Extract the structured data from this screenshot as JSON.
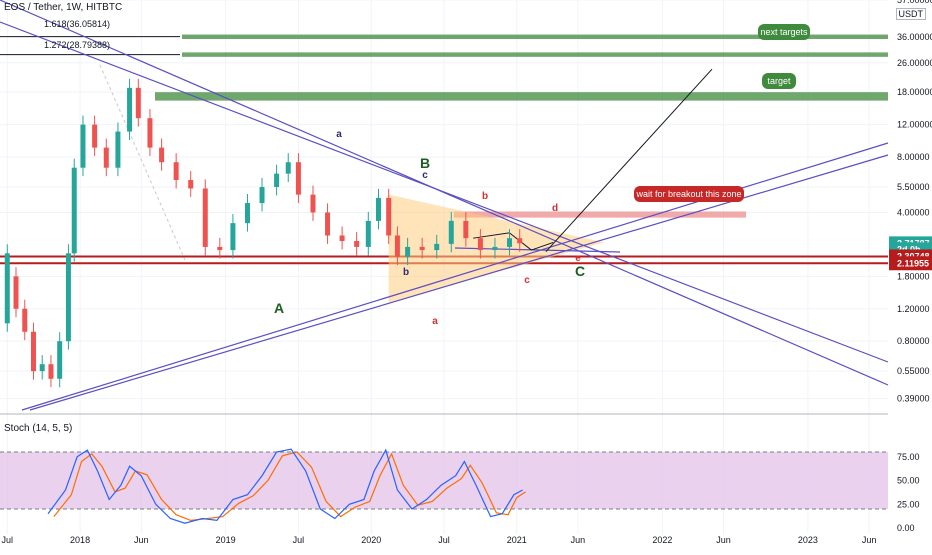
{
  "symbol_title": "EOS / Tether, 1W, HITBTC",
  "currency_label": "USDT",
  "fib_levels": [
    {
      "label": "1.618(36.05814)",
      "price": 36.05814
    },
    {
      "label": "1.272(28.79388)",
      "price": 28.79388
    }
  ],
  "price_axis": {
    "ticks": [
      {
        "label": "57.00000",
        "value": 57
      },
      {
        "label": "36.00000",
        "value": 36
      },
      {
        "label": "26.00000",
        "value": 26
      },
      {
        "label": "18.00000",
        "value": 18
      },
      {
        "label": "12.00000",
        "value": 12
      },
      {
        "label": "8.00000",
        "value": 8
      },
      {
        "label": "5.50000",
        "value": 5.5
      },
      {
        "label": "4.00000",
        "value": 4
      },
      {
        "label": "1.80000",
        "value": 1.8
      },
      {
        "label": "1.20000",
        "value": 1.2
      },
      {
        "label": "0.80000",
        "value": 0.8
      },
      {
        "label": "0.55000",
        "value": 0.55
      },
      {
        "label": "0.39000",
        "value": 0.39
      }
    ],
    "badges": [
      {
        "label": "2.71787",
        "value": 2.71787,
        "color": "#26a69a"
      },
      {
        "label": "2d 0h",
        "value": 2.52,
        "color": "#26a69a"
      },
      {
        "label": "2.30748",
        "value": 2.30748,
        "color": "#b71c1c"
      },
      {
        "label": "2.11955",
        "value": 2.11955,
        "color": "#b71c1c"
      }
    ]
  },
  "time_axis": [
    {
      "label": "Jul",
      "t": 2017.5
    },
    {
      "label": "2018",
      "t": 2018.0
    },
    {
      "label": "Jun",
      "t": 2018.42
    },
    {
      "label": "2019",
      "t": 2019.0
    },
    {
      "label": "Jul",
      "t": 2019.5
    },
    {
      "label": "2020",
      "t": 2020.0
    },
    {
      "label": "Jul",
      "t": 2020.5
    },
    {
      "label": "2021",
      "t": 2021.0
    },
    {
      "label": "Jun",
      "t": 2021.42
    },
    {
      "label": "2022",
      "t": 2022.0
    },
    {
      "label": "Jun",
      "t": 2022.42
    },
    {
      "label": "2023",
      "t": 2023.0
    },
    {
      "label": "Jun",
      "t": 2023.42
    }
  ],
  "stoch_panel": {
    "title": "Stoch (14, 5, 5)",
    "ticks": [
      {
        "label": "75.00",
        "value": 75
      },
      {
        "label": "50.00",
        "value": 50
      },
      {
        "label": "25.00",
        "value": 25
      },
      {
        "label": "0.00",
        "value": 0
      }
    ]
  },
  "annotations": {
    "wave_A": "A",
    "wave_B": "B",
    "wave_C": "C",
    "sub_a": "a",
    "sub_b": "b",
    "sub_c": "c",
    "red_a": "a",
    "red_b": "b",
    "red_c": "c",
    "red_d": "d",
    "red_e": "e"
  },
  "callouts": {
    "next_targets": "next targets",
    "target": "target",
    "breakout": "wait for breakout this zone"
  },
  "colors": {
    "bull": "#26a69a",
    "bear": "#ef5350",
    "trendline": "#5b4fc4",
    "target_zone": "#3f8a3c",
    "level_red": "#b71c1c",
    "stoch_k": "#2962ff",
    "stoch_d": "#ff6d00",
    "stoch_band": "#e1bee7"
  },
  "chart_data": {
    "type": "candlestick",
    "series": [
      {
        "name": "EOS / Tether, 1W, HITBTC",
        "values": [
          [
            2017.5,
            1.0,
            2.4
          ],
          [
            2017.56,
            1.8,
            1.2
          ],
          [
            2017.62,
            1.2,
            0.9
          ],
          [
            2017.68,
            0.9,
            0.55
          ],
          [
            2017.74,
            0.55,
            0.6
          ],
          [
            2017.8,
            0.6,
            0.5
          ],
          [
            2017.86,
            0.5,
            0.8
          ],
          [
            2017.92,
            0.8,
            2.4
          ],
          [
            2017.96,
            2.4,
            7.0
          ],
          [
            2018.02,
            7.0,
            12.0
          ],
          [
            2018.1,
            12.0,
            9.0
          ],
          [
            2018.18,
            9.0,
            7.0
          ],
          [
            2018.26,
            7.0,
            11.0
          ],
          [
            2018.34,
            11.0,
            19.0
          ],
          [
            2018.4,
            19.0,
            13.0
          ],
          [
            2018.48,
            13.0,
            9.0
          ],
          [
            2018.56,
            9.0,
            7.5
          ],
          [
            2018.66,
            7.5,
            6.0
          ],
          [
            2018.76,
            6.0,
            5.4
          ],
          [
            2018.86,
            5.4,
            2.6
          ],
          [
            2018.96,
            2.6,
            2.5
          ],
          [
            2019.05,
            2.5,
            3.5
          ],
          [
            2019.15,
            3.5,
            4.5
          ],
          [
            2019.25,
            4.5,
            5.5
          ],
          [
            2019.35,
            5.5,
            6.5
          ],
          [
            2019.43,
            6.5,
            7.5
          ],
          [
            2019.5,
            7.5,
            5.0
          ],
          [
            2019.6,
            5.0,
            4.0
          ],
          [
            2019.7,
            4.0,
            3.0
          ],
          [
            2019.8,
            3.0,
            2.8
          ],
          [
            2019.9,
            2.8,
            2.6
          ],
          [
            2019.98,
            2.6,
            3.6
          ],
          [
            2020.05,
            3.6,
            4.8
          ],
          [
            2020.12,
            4.8,
            3.0
          ],
          [
            2020.18,
            3.0,
            2.3
          ],
          [
            2020.25,
            2.3,
            2.6
          ],
          [
            2020.35,
            2.6,
            2.5
          ],
          [
            2020.45,
            2.5,
            2.7
          ],
          [
            2020.55,
            2.7,
            3.6
          ],
          [
            2020.65,
            3.6,
            2.9
          ],
          [
            2020.75,
            2.9,
            2.5
          ],
          [
            2020.85,
            2.5,
            2.6
          ],
          [
            2020.95,
            2.6,
            2.9
          ],
          [
            2021.02,
            2.9,
            2.72
          ]
        ]
      }
    ],
    "value_format": "[time, open, close]",
    "y_scale": "log",
    "xlim": [
      2017.45,
      2023.55
    ],
    "ylim": [
      0.33,
      57
    ],
    "stoch": {
      "k": [
        [
          2017.78,
          15
        ],
        [
          2017.9,
          40
        ],
        [
          2017.98,
          75
        ],
        [
          2018.05,
          82
        ],
        [
          2018.12,
          60
        ],
        [
          2018.2,
          30
        ],
        [
          2018.28,
          45
        ],
        [
          2018.34,
          65
        ],
        [
          2018.42,
          55
        ],
        [
          2018.52,
          25
        ],
        [
          2018.62,
          10
        ],
        [
          2018.72,
          5
        ],
        [
          2018.84,
          10
        ],
        [
          2018.94,
          8
        ],
        [
          2019.05,
          30
        ],
        [
          2019.15,
          35
        ],
        [
          2019.25,
          55
        ],
        [
          2019.35,
          80
        ],
        [
          2019.45,
          83
        ],
        [
          2019.55,
          60
        ],
        [
          2019.65,
          20
        ],
        [
          2019.75,
          10
        ],
        [
          2019.85,
          25
        ],
        [
          2019.95,
          30
        ],
        [
          2020.02,
          60
        ],
        [
          2020.1,
          82
        ],
        [
          2020.18,
          40
        ],
        [
          2020.28,
          20
        ],
        [
          2020.38,
          30
        ],
        [
          2020.48,
          45
        ],
        [
          2020.58,
          55
        ],
        [
          2020.64,
          70
        ],
        [
          2020.72,
          45
        ],
        [
          2020.82,
          12
        ],
        [
          2020.9,
          15
        ],
        [
          2020.98,
          35
        ],
        [
          2021.04,
          40
        ]
      ],
      "d": [
        [
          2017.82,
          12
        ],
        [
          2017.94,
          35
        ],
        [
          2018.01,
          70
        ],
        [
          2018.08,
          78
        ],
        [
          2018.15,
          65
        ],
        [
          2018.24,
          38
        ],
        [
          2018.31,
          42
        ],
        [
          2018.38,
          60
        ],
        [
          2018.46,
          56
        ],
        [
          2018.56,
          30
        ],
        [
          2018.66,
          14
        ],
        [
          2018.76,
          8
        ],
        [
          2018.88,
          10
        ],
        [
          2018.98,
          12
        ],
        [
          2019.09,
          26
        ],
        [
          2019.19,
          34
        ],
        [
          2019.29,
          50
        ],
        [
          2019.39,
          76
        ],
        [
          2019.49,
          80
        ],
        [
          2019.59,
          64
        ],
        [
          2019.69,
          28
        ],
        [
          2019.79,
          12
        ],
        [
          2019.89,
          22
        ],
        [
          2019.99,
          28
        ],
        [
          2020.06,
          55
        ],
        [
          2020.14,
          78
        ],
        [
          2020.22,
          45
        ],
        [
          2020.32,
          24
        ],
        [
          2020.42,
          28
        ],
        [
          2020.52,
          42
        ],
        [
          2020.62,
          52
        ],
        [
          2020.68,
          66
        ],
        [
          2020.76,
          48
        ],
        [
          2020.86,
          16
        ],
        [
          2020.94,
          14
        ],
        [
          2021.0,
          32
        ],
        [
          2021.06,
          38
        ]
      ]
    },
    "zones": [
      {
        "name": "next targets",
        "low": 35.0,
        "high": 37.0
      },
      {
        "name": "next targets",
        "low": 28.0,
        "high": 29.6
      },
      {
        "name": "target",
        "low": 16.2,
        "high": 18.0
      },
      {
        "name": "wait for breakout this zone",
        "low": 3.75,
        "high": 4.05
      }
    ],
    "levels": [
      2.30748,
      2.11955
    ]
  }
}
